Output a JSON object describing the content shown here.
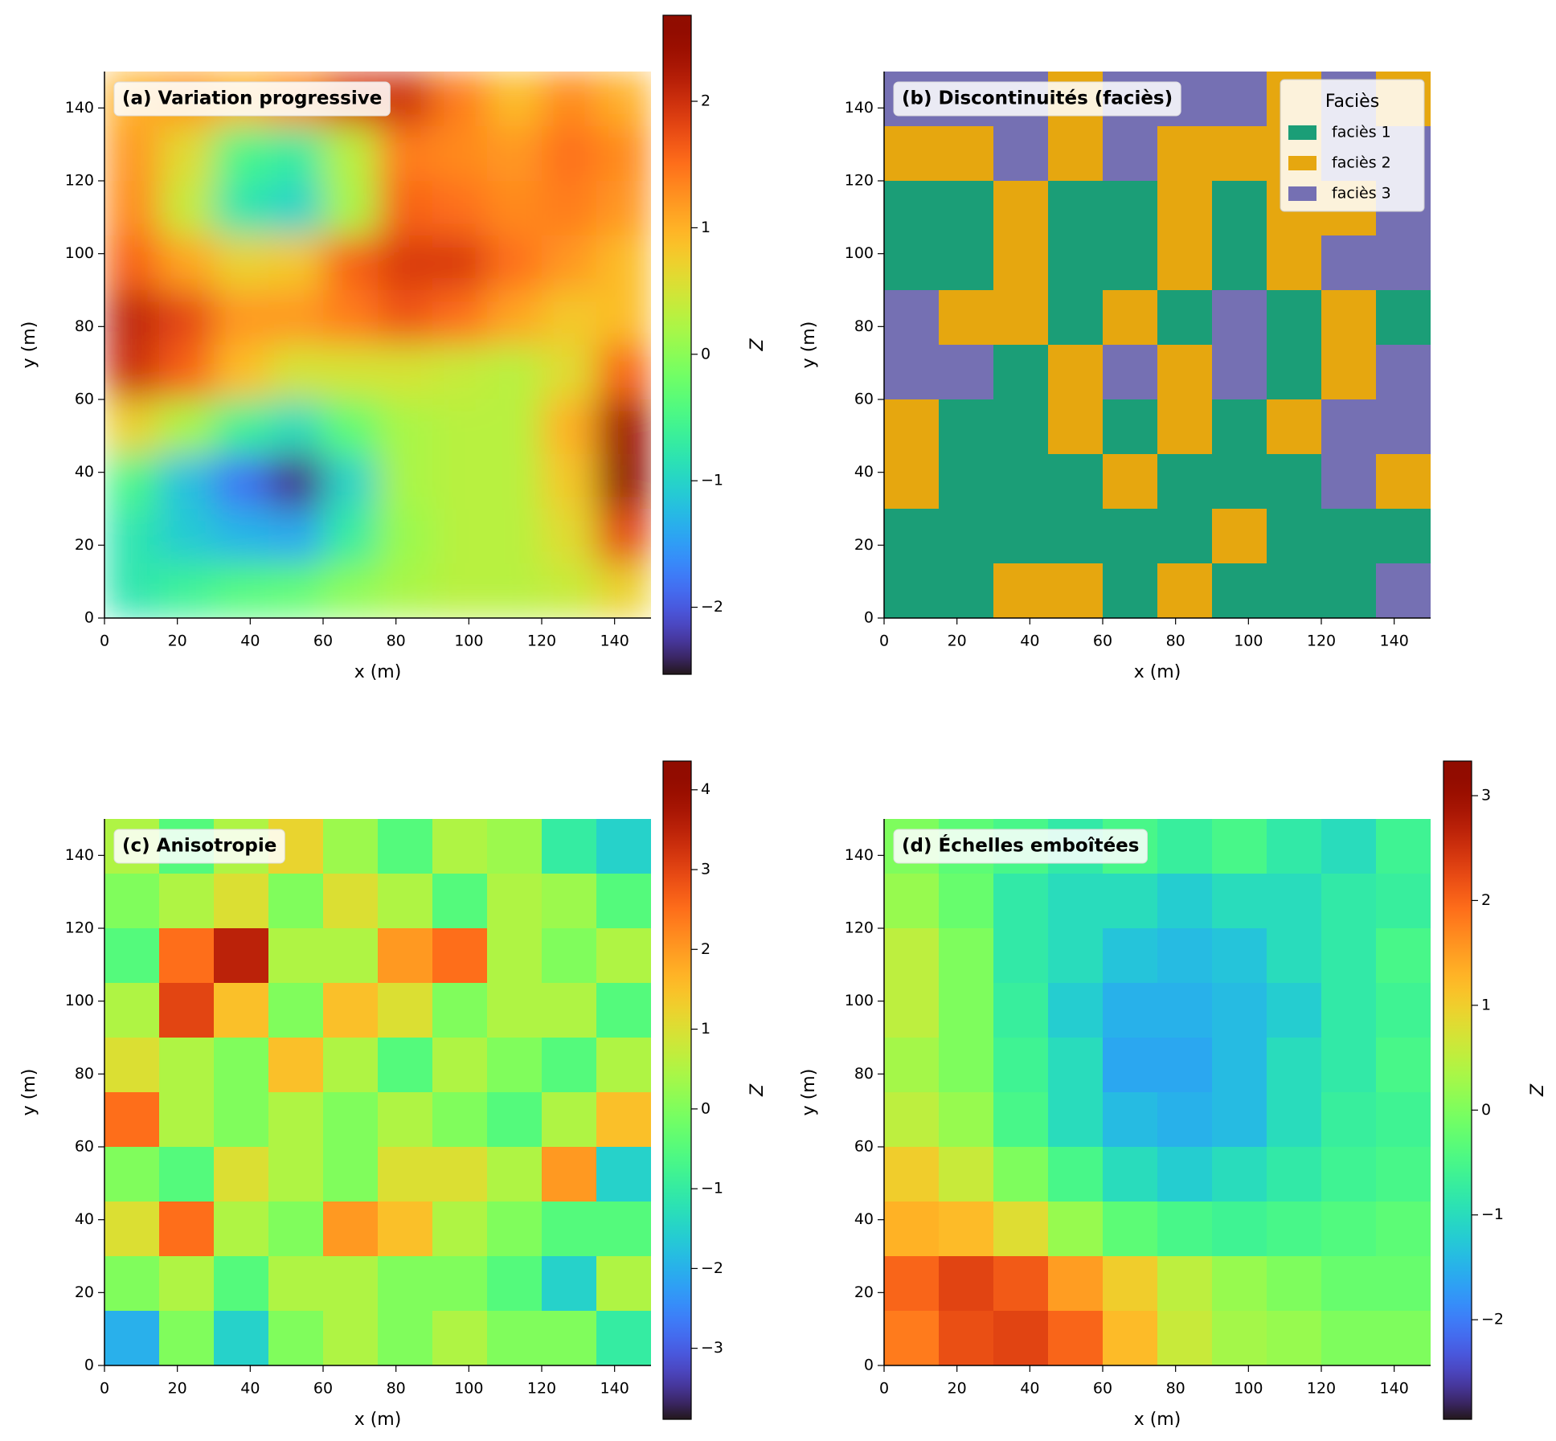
{
  "chart_data": [
    {
      "type": "heatmap",
      "title": "(a) Variation progressive",
      "xlabel": "x (m)",
      "ylabel": "y (m)",
      "xlim": [
        0,
        150
      ],
      "ylim": [
        0,
        150
      ],
      "xticks": [
        0,
        20,
        40,
        60,
        80,
        100,
        120,
        140
      ],
      "yticks": [
        0,
        20,
        40,
        60,
        80,
        100,
        120,
        140
      ],
      "colormap": "turbo",
      "interpolation": "bilinear",
      "z": [
        [
          1.0,
          1.2,
          1.0,
          1.3,
          1.9,
          2.0,
          1.4,
          0.9,
          1.3,
          1.0
        ],
        [
          1.2,
          0.6,
          -0.5,
          -0.7,
          0.3,
          1.4,
          1.3,
          1.2,
          1.5,
          1.3
        ],
        [
          1.3,
          0.4,
          -0.8,
          -1.0,
          0.2,
          1.6,
          1.5,
          1.3,
          1.4,
          1.2
        ],
        [
          1.6,
          1.1,
          0.7,
          0.8,
          1.6,
          1.9,
          1.9,
          1.5,
          1.2,
          0.9
        ],
        [
          2.1,
          1.8,
          1.2,
          1.2,
          1.4,
          1.7,
          1.5,
          1.1,
          0.8,
          0.9
        ],
        [
          2.0,
          1.6,
          0.9,
          0.5,
          0.5,
          0.5,
          0.4,
          0.3,
          0.6,
          1.6
        ],
        [
          0.7,
          0.2,
          -0.6,
          -0.9,
          -0.3,
          0.2,
          0.3,
          0.3,
          1.0,
          2.4
        ],
        [
          -0.5,
          -1.2,
          -1.8,
          -2.3,
          -1.0,
          0.2,
          0.3,
          0.3,
          0.8,
          2.6
        ],
        [
          -0.8,
          -1.1,
          -1.3,
          -1.4,
          -0.7,
          0.1,
          0.3,
          0.3,
          0.6,
          1.8
        ],
        [
          -0.8,
          -0.6,
          -0.4,
          -0.3,
          0.0,
          0.2,
          0.3,
          0.3,
          0.4,
          0.7
        ]
      ],
      "colorbar": {
        "label": "Z",
        "lim": [
          -2.53,
          2.68
        ],
        "ticks": [
          {
            "value": -2,
            "label": "−2"
          },
          {
            "value": -1,
            "label": "−1"
          },
          0,
          1,
          2
        ]
      }
    },
    {
      "type": "heatmap",
      "title": "(b) Discontinuités (faciès)",
      "xlabel": "x (m)",
      "ylabel": "y (m)",
      "xlim": [
        0,
        150
      ],
      "ylim": [
        0,
        150
      ],
      "xticks": [
        0,
        20,
        40,
        60,
        80,
        100,
        120,
        140
      ],
      "yticks": [
        0,
        20,
        40,
        60,
        80,
        100,
        120,
        140
      ],
      "interpolation": "nearest",
      "legend_title": "Faciès",
      "legend": "upper right",
      "categories": [
        "faciès 1",
        "faciès 2",
        "faciès 3"
      ],
      "colors": [
        "#1b9e77",
        "#e6a70f",
        "#7570b3"
      ],
      "z": [
        [
          3,
          3,
          3,
          2,
          3,
          3,
          3,
          2,
          3,
          2
        ],
        [
          2,
          2,
          3,
          2,
          3,
          2,
          2,
          2,
          3,
          3
        ],
        [
          1,
          1,
          2,
          1,
          1,
          2,
          1,
          2,
          2,
          3
        ],
        [
          1,
          1,
          2,
          1,
          1,
          2,
          1,
          2,
          3,
          3
        ],
        [
          3,
          2,
          2,
          1,
          2,
          1,
          3,
          1,
          2,
          1
        ],
        [
          3,
          3,
          1,
          2,
          3,
          2,
          3,
          1,
          2,
          3
        ],
        [
          2,
          1,
          1,
          2,
          1,
          2,
          1,
          2,
          3,
          3
        ],
        [
          2,
          1,
          1,
          1,
          2,
          1,
          1,
          1,
          3,
          2
        ],
        [
          1,
          1,
          1,
          1,
          1,
          1,
          2,
          1,
          1,
          1
        ],
        [
          1,
          1,
          2,
          2,
          1,
          2,
          1,
          1,
          1,
          3
        ]
      ]
    },
    {
      "type": "heatmap",
      "title": "(c) Anisotropie",
      "xlabel": "x (m)",
      "ylabel": "y (m)",
      "xlim": [
        0,
        150
      ],
      "ylim": [
        0,
        150
      ],
      "xticks": [
        0,
        20,
        40,
        60,
        80,
        100,
        120,
        140
      ],
      "yticks": [
        0,
        20,
        40,
        60,
        80,
        100,
        120,
        140
      ],
      "colormap": "turbo",
      "interpolation": "nearest",
      "z": [
        [
          0.5,
          -0.5,
          0.5,
          1.2,
          0.3,
          -0.5,
          0.5,
          0.3,
          -1.0,
          -1.5
        ],
        [
          0.0,
          0.5,
          1.0,
          0.0,
          1.0,
          0.5,
          -0.5,
          0.5,
          0.3,
          -0.5
        ],
        [
          -0.5,
          2.5,
          3.5,
          0.5,
          0.5,
          2.0,
          2.5,
          0.5,
          0.0,
          0.5
        ],
        [
          0.5,
          3.0,
          1.5,
          0.0,
          1.5,
          1.0,
          0.0,
          0.5,
          0.5,
          -0.5
        ],
        [
          1.0,
          0.5,
          0.0,
          1.5,
          0.5,
          -0.5,
          0.5,
          0.0,
          -0.5,
          0.5
        ],
        [
          2.5,
          0.5,
          0.0,
          0.5,
          0.0,
          0.5,
          0.0,
          -0.5,
          0.5,
          1.5
        ],
        [
          0.0,
          -0.5,
          1.0,
          0.5,
          0.0,
          1.0,
          1.0,
          0.5,
          2.0,
          -1.5
        ],
        [
          1.0,
          2.5,
          0.5,
          0.0,
          2.0,
          1.5,
          0.5,
          0.0,
          -0.5,
          -0.5
        ],
        [
          0.0,
          0.5,
          -0.5,
          0.5,
          0.5,
          0.0,
          0.0,
          -0.5,
          -1.5,
          0.5
        ],
        [
          -2.0,
          0.0,
          -1.5,
          0.0,
          0.5,
          0.0,
          0.5,
          0.0,
          0.0,
          -1.0
        ]
      ],
      "colorbar": {
        "label": "Z",
        "lim": [
          -3.89,
          4.36
        ],
        "ticks": [
          {
            "value": -3,
            "label": "−3"
          },
          {
            "value": -2,
            "label": "−2"
          },
          {
            "value": -1,
            "label": "−1"
          },
          0,
          1,
          2,
          3,
          4
        ]
      }
    },
    {
      "type": "heatmap",
      "title": "(d) Échelles emboîtées",
      "xlabel": "x (m)",
      "ylabel": "y (m)",
      "xlim": [
        0,
        150
      ],
      "ylim": [
        0,
        150
      ],
      "xticks": [
        0,
        20,
        40,
        60,
        80,
        100,
        120,
        140
      ],
      "yticks": [
        0,
        20,
        40,
        60,
        80,
        100,
        120,
        140
      ],
      "colormap": "turbo",
      "interpolation": "nearest",
      "z": [
        [
          0.0,
          -0.3,
          -0.5,
          -0.8,
          -0.5,
          -0.7,
          -0.5,
          -0.8,
          -1.0,
          -0.6
        ],
        [
          0.2,
          -0.2,
          -0.8,
          -1.0,
          -1.0,
          -1.2,
          -1.0,
          -1.0,
          -0.8,
          -0.7
        ],
        [
          0.5,
          0.0,
          -0.8,
          -1.0,
          -1.3,
          -1.4,
          -1.3,
          -1.0,
          -0.8,
          -0.5
        ],
        [
          0.5,
          0.0,
          -0.7,
          -1.2,
          -1.5,
          -1.5,
          -1.4,
          -1.2,
          -0.8,
          -0.6
        ],
        [
          0.3,
          0.0,
          -0.6,
          -1.0,
          -1.6,
          -1.6,
          -1.4,
          -1.0,
          -0.8,
          -0.5
        ],
        [
          0.5,
          0.2,
          -0.5,
          -1.0,
          -1.4,
          -1.5,
          -1.4,
          -1.0,
          -0.7,
          -0.6
        ],
        [
          1.0,
          0.6,
          0.0,
          -0.5,
          -1.0,
          -1.2,
          -1.0,
          -0.8,
          -0.6,
          -0.5
        ],
        [
          1.3,
          1.2,
          0.8,
          0.2,
          -0.3,
          -0.5,
          -0.6,
          -0.5,
          -0.4,
          -0.3
        ],
        [
          2.0,
          2.3,
          2.1,
          1.5,
          1.0,
          0.5,
          0.2,
          0.0,
          -0.2,
          -0.2
        ],
        [
          1.8,
          2.2,
          2.3,
          2.0,
          1.2,
          0.6,
          0.3,
          0.2,
          0.0,
          0.0
        ]
      ],
      "colorbar": {
        "label": "Z",
        "lim": [
          -2.95,
          3.33
        ],
        "ticks": [
          {
            "value": -2,
            "label": "−2"
          },
          {
            "value": -1,
            "label": "−1"
          },
          0,
          1,
          2,
          3
        ]
      }
    }
  ]
}
